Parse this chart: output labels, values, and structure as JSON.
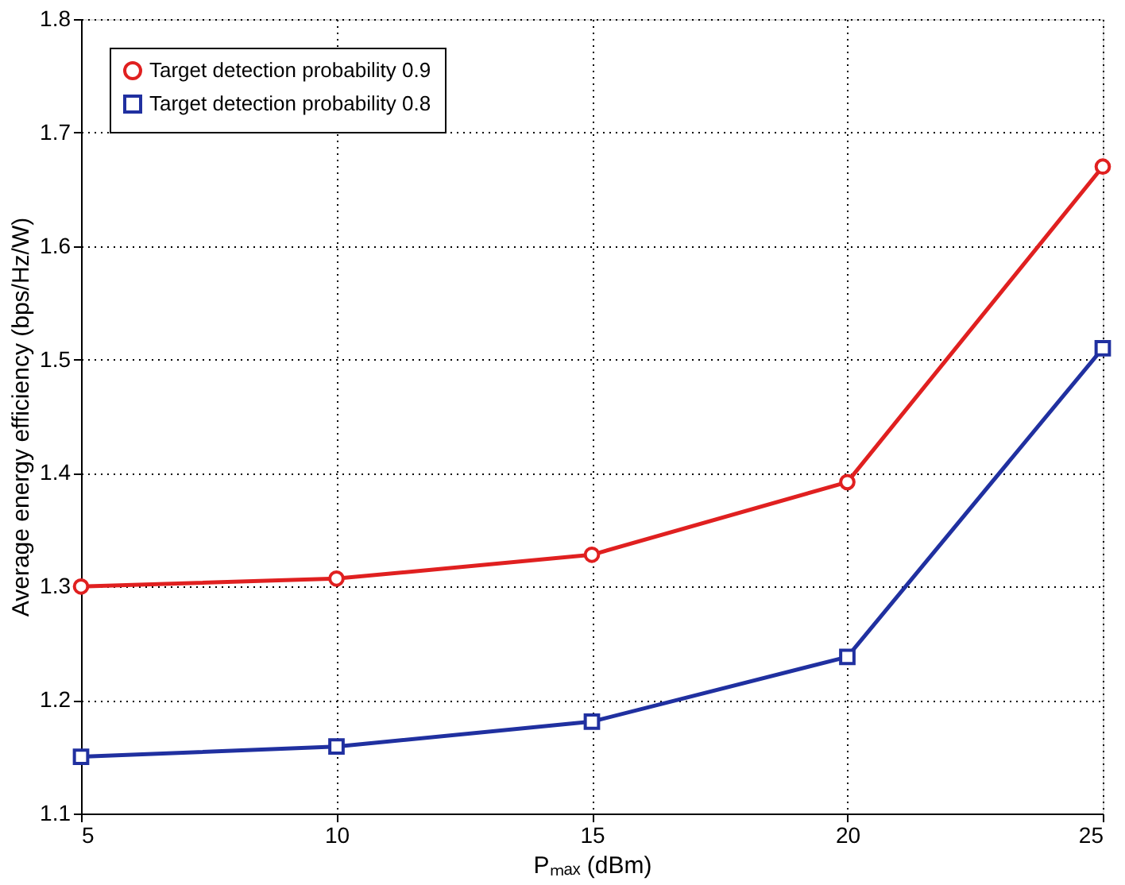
{
  "chart_data": {
    "type": "line",
    "xlabel": "Pₘₐₓ (dBm)",
    "ylabel": "Average energy efficiency (bps/Hz/W)",
    "x": [
      5,
      10,
      15,
      20,
      25
    ],
    "series": [
      {
        "name": "Target detection probability 0.9",
        "color": "#e02020",
        "marker": "circle",
        "values": [
          1.3,
          1.307,
          1.328,
          1.392,
          1.67
        ]
      },
      {
        "name": "Target detection probability 0.8",
        "color": "#2030a0",
        "marker": "square",
        "values": [
          1.15,
          1.159,
          1.181,
          1.238,
          1.51
        ]
      }
    ],
    "xlim": [
      5,
      25
    ],
    "xticks": [
      5,
      10,
      15,
      20,
      25
    ],
    "ylim": [
      1.1,
      1.8
    ],
    "yticks": [
      1.1,
      1.2,
      1.3,
      1.4,
      1.5,
      1.6,
      1.7,
      1.8
    ],
    "grid": true,
    "legend": "top left",
    "line_style": "solid"
  }
}
